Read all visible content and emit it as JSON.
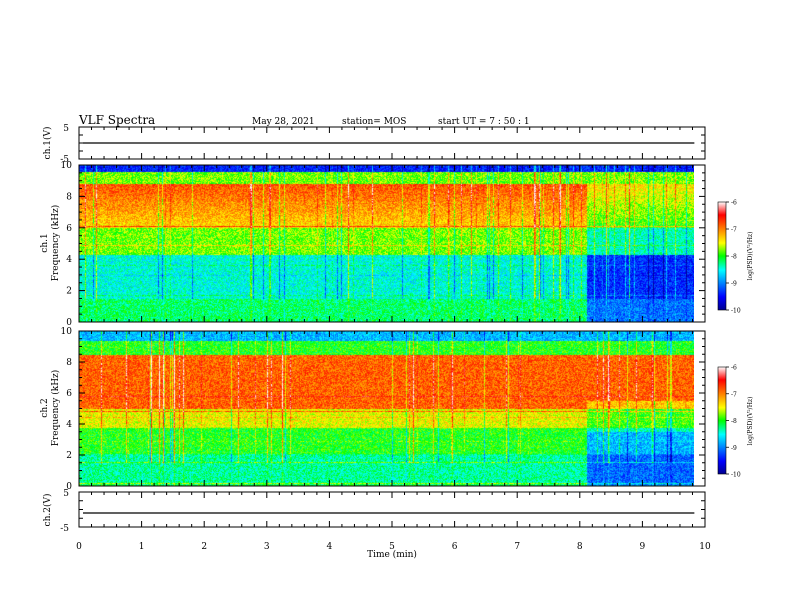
{
  "header": {
    "title": "VLF Spectra",
    "date": "May 28, 2021",
    "station": "station= MOS",
    "start": "start UT =  7 : 50 : 1"
  },
  "chart_data": [
    {
      "type": "line",
      "name": "ch1-waveform",
      "ylabel": "ch.1(V)",
      "ylim": [
        -5,
        5
      ],
      "yticks": [
        "5",
        "-5"
      ],
      "xlim": [
        0,
        10
      ],
      "baseline": 0,
      "color": "#000000"
    },
    {
      "type": "heatmap",
      "name": "ch1-spectrogram",
      "ylabel": "ch.1\nFrequency (kHz)",
      "ylabel_lines": [
        "ch.1",
        "Frequency (kHz)"
      ],
      "xlim": [
        0,
        10
      ],
      "ylim": [
        0,
        10
      ],
      "yticks": [
        "0",
        "2",
        "4",
        "6",
        "8",
        "10"
      ],
      "data_end_min": 9.83,
      "quiet_after_min": 8.1,
      "colorbar": {
        "label": "log(PSD)(V²/Hz)",
        "range": [
          -10,
          -6
        ],
        "ticks": [
          "-6",
          "-7",
          "-8",
          "-9",
          "-10"
        ]
      }
    },
    {
      "type": "heatmap",
      "name": "ch2-spectrogram",
      "ylabel": "ch.2\nFrequency (kHz)",
      "ylabel_lines": [
        "ch.2",
        "Frequency (kHz)"
      ],
      "xlim": [
        0,
        10
      ],
      "ylim": [
        0,
        10
      ],
      "yticks": [
        "0",
        "2",
        "4",
        "6",
        "8",
        "10"
      ],
      "data_end_min": 9.83,
      "quiet_after_min": 8.1,
      "colorbar": {
        "label": "log(PSD)(V²/Hz)",
        "range": [
          -10,
          -6
        ],
        "ticks": [
          "-6",
          "-7",
          "-8",
          "-9",
          "-10"
        ]
      }
    },
    {
      "type": "line",
      "name": "ch2-waveform",
      "ylabel": "ch.2(V)",
      "ylim": [
        -5,
        5
      ],
      "yticks": [
        "5",
        "-5"
      ],
      "xlim": [
        0,
        10
      ],
      "baseline": -1,
      "color": "#000000"
    }
  ],
  "xaxis": {
    "label": "Time (min)",
    "ticks": [
      "0",
      "1",
      "2",
      "3",
      "4",
      "5",
      "6",
      "7",
      "8",
      "9",
      "10"
    ]
  },
  "colors": {
    "jet": [
      "#00008f",
      "#0000ff",
      "#00ffff",
      "#00ff00",
      "#ffff00",
      "#ff7f00",
      "#ff0000",
      "#ffffff"
    ]
  }
}
